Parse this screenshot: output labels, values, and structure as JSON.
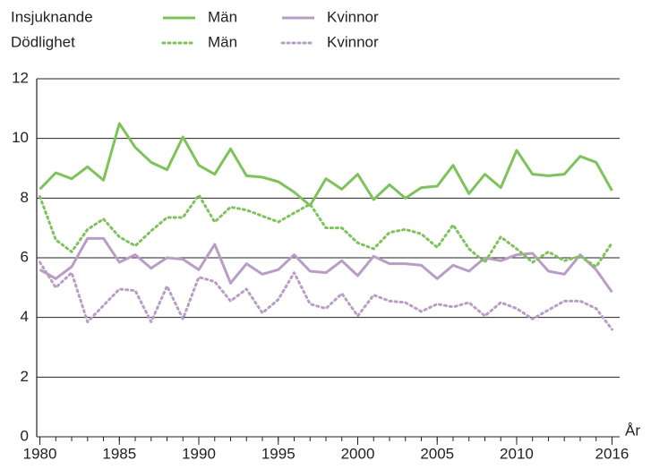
{
  "chart_data": {
    "type": "line",
    "legend_groups": [
      "Insjuknande",
      "Dödlighet"
    ],
    "x_label": "År",
    "x": [
      1980,
      1981,
      1982,
      1983,
      1984,
      1985,
      1986,
      1987,
      1988,
      1989,
      1990,
      1991,
      1992,
      1993,
      1994,
      1995,
      1996,
      1997,
      1998,
      1999,
      2000,
      2001,
      2002,
      2003,
      2004,
      2005,
      2006,
      2007,
      2008,
      2009,
      2010,
      2011,
      2012,
      2013,
      2014,
      2015,
      2016
    ],
    "xlim": [
      1979.8,
      2016.2
    ],
    "xticks": [
      1980,
      1985,
      1990,
      1995,
      2000,
      2005,
      2010,
      2016
    ],
    "ylim": [
      0,
      12
    ],
    "yticks": [
      0,
      2,
      4,
      6,
      8,
      10,
      12
    ],
    "grid": true,
    "series": [
      {
        "name": "Män",
        "color": "#7ec35a",
        "linestyle": "solid",
        "values": [
          8.3,
          8.85,
          8.65,
          9.05,
          8.6,
          10.5,
          9.7,
          9.2,
          8.95,
          10.05,
          9.1,
          8.8,
          9.65,
          8.75,
          8.7,
          8.55,
          8.2,
          7.75,
          8.65,
          8.3,
          8.8,
          7.95,
          8.45,
          8.0,
          8.35,
          8.4,
          9.1,
          8.15,
          8.8,
          8.35,
          9.6,
          8.8,
          8.75,
          8.8,
          9.4,
          9.2,
          8.25
        ]
      },
      {
        "name": "Kvinnor",
        "color": "#b89dc5",
        "linestyle": "solid",
        "values": [
          5.6,
          5.3,
          5.7,
          6.65,
          6.65,
          5.85,
          6.1,
          5.65,
          6.0,
          5.95,
          5.6,
          6.45,
          5.15,
          5.8,
          5.45,
          5.6,
          6.1,
          5.55,
          5.5,
          5.9,
          5.4,
          6.05,
          5.8,
          5.8,
          5.75,
          5.3,
          5.75,
          5.55,
          6.0,
          5.9,
          6.1,
          6.15,
          5.55,
          5.45,
          6.1,
          5.6,
          4.85
        ]
      },
      {
        "name": "Män",
        "color": "#7ec35a",
        "linestyle": "dotted",
        "values": [
          8.05,
          6.6,
          6.2,
          6.95,
          7.3,
          6.7,
          6.4,
          6.9,
          7.35,
          7.35,
          8.1,
          7.2,
          7.7,
          7.6,
          7.4,
          7.2,
          7.5,
          7.8,
          7.0,
          7.0,
          6.5,
          6.3,
          6.85,
          6.95,
          6.8,
          6.35,
          7.1,
          6.3,
          5.85,
          6.7,
          6.3,
          5.85,
          6.2,
          5.9,
          6.05,
          5.7,
          6.5
        ]
      },
      {
        "name": "Kvinnor",
        "color": "#b89dc5",
        "linestyle": "dotted",
        "values": [
          5.85,
          5.0,
          5.5,
          3.85,
          4.4,
          4.95,
          4.9,
          3.85,
          5.05,
          3.95,
          5.35,
          5.2,
          4.55,
          4.95,
          4.15,
          4.6,
          5.5,
          4.45,
          4.3,
          4.8,
          4.05,
          4.75,
          4.55,
          4.5,
          4.2,
          4.45,
          4.35,
          4.5,
          4.05,
          4.5,
          4.3,
          3.95,
          4.25,
          4.55,
          4.55,
          4.3,
          3.6
        ]
      }
    ]
  }
}
